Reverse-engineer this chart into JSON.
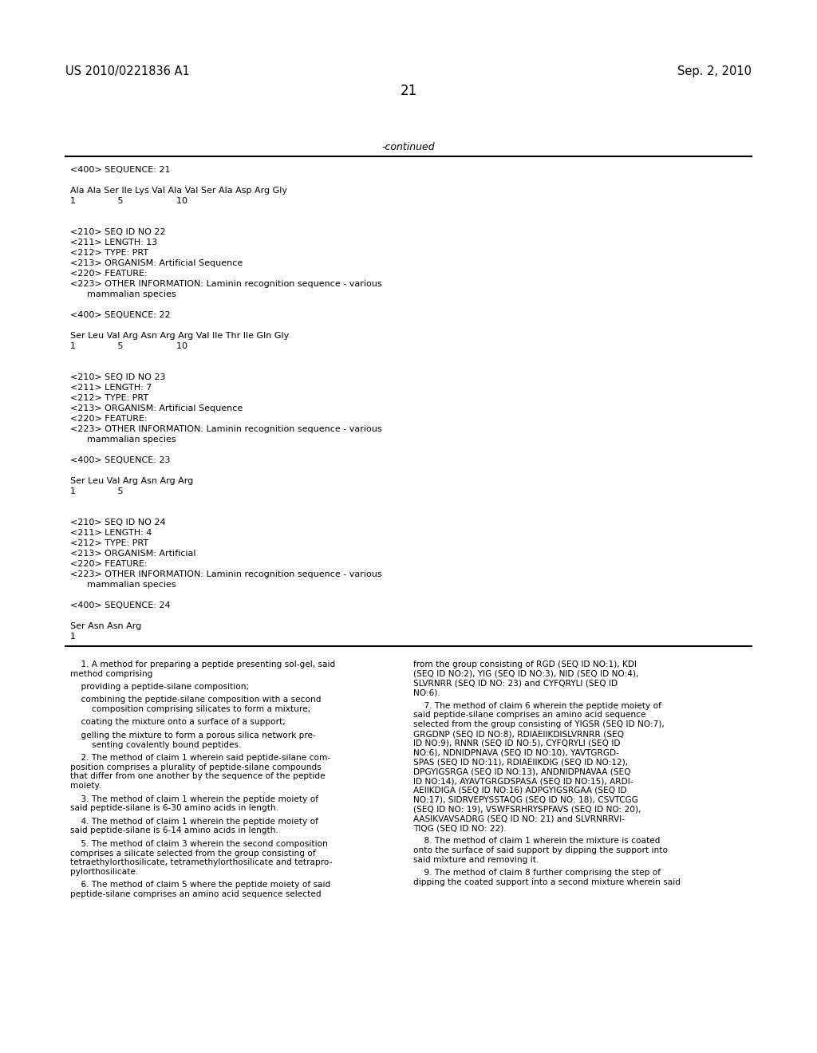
{
  "bg_color": "#ffffff",
  "header_left": "US 2010/0221836 A1",
  "header_right": "Sep. 2, 2010",
  "page_number": "21",
  "continued_label": "-continued",
  "top_section_lines": [
    "<400> SEQUENCE: 21",
    "",
    "Ala Ala Ser Ile Lys Val Ala Val Ser Ala Asp Arg Gly",
    "1               5                   10",
    "",
    "",
    "<210> SEQ ID NO 22",
    "<211> LENGTH: 13",
    "<212> TYPE: PRT",
    "<213> ORGANISM: Artificial Sequence",
    "<220> FEATURE:",
    "<223> OTHER INFORMATION: Laminin recognition sequence - various",
    "      mammalian species",
    "",
    "<400> SEQUENCE: 22",
    "",
    "Ser Leu Val Arg Asn Arg Arg Val Ile Thr Ile Gln Gly",
    "1               5                   10",
    "",
    "",
    "<210> SEQ ID NO 23",
    "<211> LENGTH: 7",
    "<212> TYPE: PRT",
    "<213> ORGANISM: Artificial Sequence",
    "<220> FEATURE:",
    "<223> OTHER INFORMATION: Laminin recognition sequence - various",
    "      mammalian species",
    "",
    "<400> SEQUENCE: 23",
    "",
    "Ser Leu Val Arg Asn Arg Arg",
    "1               5",
    "",
    "",
    "<210> SEQ ID NO 24",
    "<211> LENGTH: 4",
    "<212> TYPE: PRT",
    "<213> ORGANISM: Artificial",
    "<220> FEATURE:",
    "<223> OTHER INFORMATION: Laminin recognition sequence - various",
    "      mammalian species",
    "",
    "<400> SEQUENCE: 24",
    "",
    "Ser Asn Asn Arg",
    "1"
  ],
  "left_col_paragraphs": [
    "    1. A method for preparing a peptide presenting sol-gel, said\nmethod comprising",
    "    providing a peptide-silane composition;",
    "    combining the peptide-silane composition with a second\n        composition comprising silicates to form a mixture;",
    "    coating the mixture onto a surface of a support;",
    "    gelling the mixture to form a porous silica network pre-\n        senting covalently bound peptides.",
    "    2. The method of claim 1 wherein said peptide-silane com-\nposition comprises a plurality of peptide-silane compounds\nthat differ from one another by the sequence of the peptide\nmoiety.",
    "    3. The method of claim 1 wherein the peptide moiety of\nsaid peptide-silane is 6-30 amino acids in length.",
    "    4. The method of claim 1 wherein the peptide moiety of\nsaid peptide-silane is 6-14 amino acids in length.",
    "    5. The method of claim 3 wherein the second composition\ncomprises a silicate selected from the group consisting of\ntetraethylorthosilicate, tetramethylorthosilicate and tetrapro-\npylorthosilicate.",
    "    6. The method of claim 5 where the peptide moiety of said\npeptide-silane comprises an amino acid sequence selected"
  ],
  "right_col_paragraphs": [
    "from the group consisting of RGD (SEQ ID NO:1), KDI\n(SEQ ID NO:2), YIG (SEQ ID NO:3), NID (SEQ ID NO:4),\nSLVRNRR (SEQ ID NO: 23) and CYFQRYLI (SEQ ID\nNO:6).",
    "    7. The method of claim 6 wherein the peptide moiety of\nsaid peptide-silane comprises an amino acid sequence\nselected from the group consisting of YIGSR (SEQ ID NO:7),\nGRGDNP (SEQ ID NO:8), RDIAEIIKDISLVRNRR (SEQ\nID NO:9), RNNR (SEQ ID NO:5), CYFQRYLI (SEQ ID\nNO:6), NDNIDPNAVA (SEQ ID NO:10), YAVTGRGD-\nSPAS (SEQ ID NO:11), RDIAEIIKDIG (SEQ ID NO:12),\nDPGYIGSRGA (SEQ ID NO:13), ANDNIDPNAVAA (SEQ\nID NO:14), AYAVTGRGDSPASA (SEQ ID NO:15), ARDI-\nAEIIKDIGA (SEQ ID NO:16) ADPGYIGSRGAA (SEQ ID\nNO:17), SIDRVEPYSSTAQG (SEQ ID NO: 18), CSVTCGG\n(SEQ ID NO: 19), VSWFSRHRYSPFAVS (SEQ ID NO: 20),\nAASIKVAVSADRG (SEQ ID NO: 21) and SLVRNRRVI-\nTIQG (SEQ ID NO: 22).",
    "    8. The method of claim 1 wherein the mixture is coated\nonto the surface of said support by dipping the support into\nsaid mixture and removing it.",
    "    9. The method of claim 8 further comprising the step of\ndipping the coated support into a second mixture wherein said"
  ]
}
